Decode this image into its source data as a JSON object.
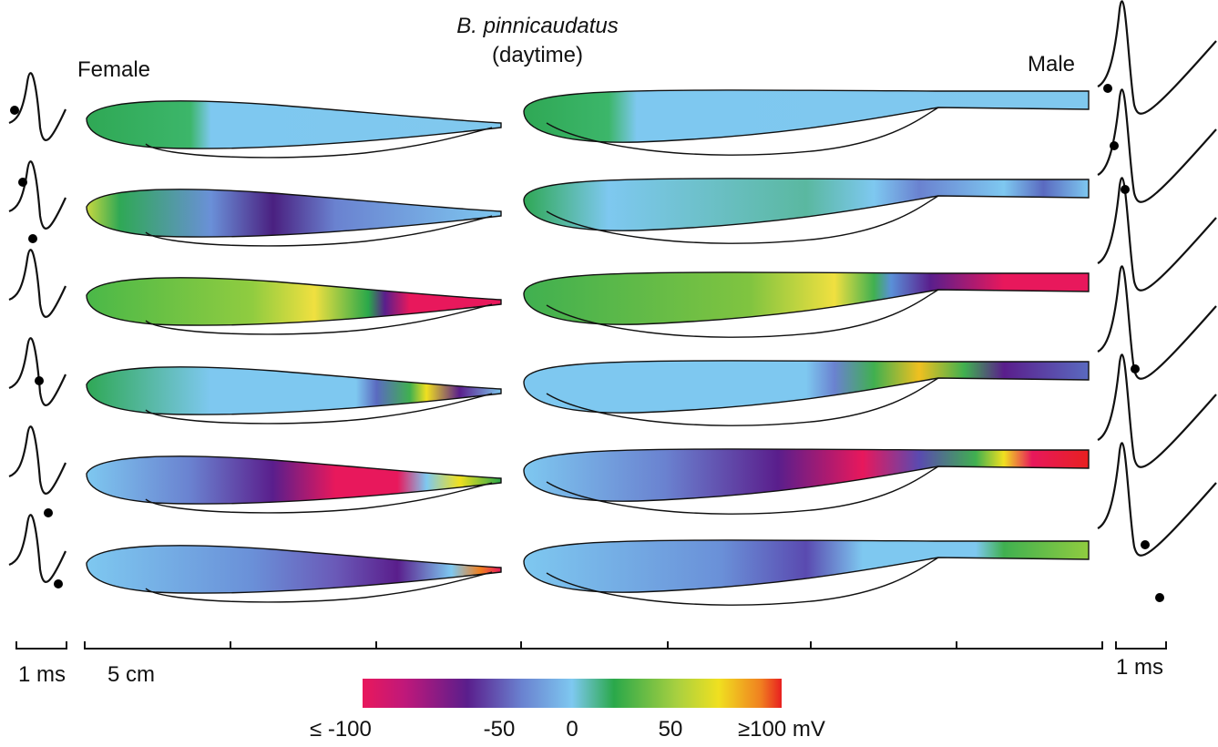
{
  "header": {
    "species": "B. pinnicaudatus",
    "condition": "(daytime)"
  },
  "panels": {
    "left": "Female",
    "right": "Male"
  },
  "scale": {
    "time_left": "1 ms",
    "time_right": "1 ms",
    "length": "5 cm"
  },
  "colorbar": {
    "labels": [
      "≤ -100",
      "-50",
      "0",
      "50",
      "≥100 mV"
    ]
  }
}
